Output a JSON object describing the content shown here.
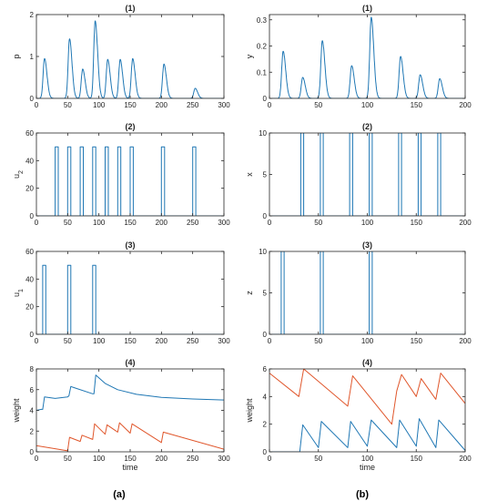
{
  "panel_labels": [
    "(a)",
    "(b)"
  ],
  "colors": {
    "blue": "#1f77b4",
    "orange": "#e0562b",
    "axis": "#262626"
  },
  "chart_data": [
    {
      "id": "a1",
      "type": "line",
      "title": "(1)",
      "xlabel": "",
      "ylabel": "p",
      "xlim": [
        0,
        300
      ],
      "ylim": [
        0,
        2
      ],
      "xticks": [
        0,
        50,
        100,
        150,
        200,
        250,
        300
      ],
      "yticks": [
        0,
        1,
        2
      ],
      "series": [
        {
          "color": "blue",
          "kind": "pulses",
          "peaks": [
            [
              13,
              0.95
            ],
            [
              53,
              1.42
            ],
            [
              74,
              0.7
            ],
            [
              94,
              1.85
            ],
            [
              114,
              0.93
            ],
            [
              134,
              0.93
            ],
            [
              154,
              0.95
            ],
            [
              204,
              0.82
            ],
            [
              254,
              0.24
            ]
          ]
        }
      ]
    },
    {
      "id": "b1",
      "type": "line",
      "title": "(1)",
      "xlabel": "",
      "ylabel": "y",
      "xlim": [
        0,
        200
      ],
      "ylim": [
        0,
        0.32
      ],
      "xticks": [
        0,
        50,
        100,
        150,
        200
      ],
      "yticks": [
        0,
        0.1,
        0.2,
        0.3
      ],
      "series": [
        {
          "color": "blue",
          "kind": "pulses",
          "peaks": [
            [
              14,
              0.18
            ],
            [
              34,
              0.08
            ],
            [
              54,
              0.22
            ],
            [
              84,
              0.125
            ],
            [
              104,
              0.31
            ],
            [
              134,
              0.16
            ],
            [
              154,
              0.09
            ],
            [
              174,
              0.075
            ]
          ]
        }
      ]
    },
    {
      "id": "a2",
      "type": "line",
      "title": "(2)",
      "xlabel": "",
      "ylabel": "u",
      "ylabel_sub": "2",
      "xlim": [
        0,
        300
      ],
      "ylim": [
        0,
        60
      ],
      "xticks": [
        0,
        50,
        100,
        150,
        200,
        250,
        300
      ],
      "yticks": [
        0,
        20,
        40,
        60
      ],
      "series": [
        {
          "color": "blue",
          "kind": "rect",
          "level": 50,
          "intervals": [
            [
              30,
              35
            ],
            [
              50,
              55
            ],
            [
              70,
              75
            ],
            [
              90,
              95
            ],
            [
              110,
              115
            ],
            [
              130,
              135
            ],
            [
              150,
              155
            ],
            [
              200,
              205
            ],
            [
              250,
              255
            ]
          ]
        }
      ]
    },
    {
      "id": "b2",
      "type": "line",
      "title": "(2)",
      "xlabel": "",
      "ylabel": "x",
      "xlim": [
        0,
        200
      ],
      "ylim": [
        0,
        10
      ],
      "xticks": [
        0,
        50,
        100,
        150,
        200
      ],
      "yticks": [
        0,
        5,
        10
      ],
      "series": [
        {
          "color": "blue",
          "kind": "rect",
          "level": 10,
          "intervals": [
            [
              32,
              35
            ],
            [
              52,
              55
            ],
            [
              82,
              85
            ],
            [
              102,
              105
            ],
            [
              132,
              135
            ],
            [
              152,
              155
            ],
            [
              172,
              175
            ]
          ]
        }
      ]
    },
    {
      "id": "a3",
      "type": "line",
      "title": "(3)",
      "xlabel": "",
      "ylabel": "u",
      "ylabel_sub": "1",
      "xlim": [
        0,
        300
      ],
      "ylim": [
        0,
        60
      ],
      "xticks": [
        0,
        50,
        100,
        150,
        200,
        250,
        300
      ],
      "yticks": [
        0,
        20,
        40,
        60
      ],
      "series": [
        {
          "color": "blue",
          "kind": "rect",
          "level": 50,
          "intervals": [
            [
              10,
              15
            ],
            [
              50,
              55
            ],
            [
              90,
              95
            ]
          ]
        }
      ]
    },
    {
      "id": "b3",
      "type": "line",
      "title": "(3)",
      "xlabel": "",
      "ylabel": "z",
      "xlim": [
        0,
        200
      ],
      "ylim": [
        0,
        10
      ],
      "xticks": [
        0,
        50,
        100,
        150,
        200
      ],
      "yticks": [
        0,
        5,
        10
      ],
      "series": [
        {
          "color": "blue",
          "kind": "rect",
          "level": 10,
          "intervals": [
            [
              12,
              15
            ],
            [
              52,
              55
            ],
            [
              102,
              105
            ]
          ]
        }
      ]
    },
    {
      "id": "a4",
      "type": "line",
      "title": "(4)",
      "xlabel": "time",
      "ylabel": "weight",
      "xlim": [
        0,
        300
      ],
      "ylim": [
        0,
        8
      ],
      "xticks": [
        0,
        50,
        100,
        150,
        200,
        250,
        300
      ],
      "yticks": [
        0,
        2,
        4,
        6,
        8
      ],
      "series": [
        {
          "color": "blue",
          "kind": "points",
          "points": [
            [
              0,
              4
            ],
            [
              8,
              4.1
            ],
            [
              10,
              4.1
            ],
            [
              13,
              5.3
            ],
            [
              30,
              5.15
            ],
            [
              50,
              5.3
            ],
            [
              52,
              5.4
            ],
            [
              55,
              6.3
            ],
            [
              60,
              6.2
            ],
            [
              90,
              5.6
            ],
            [
              92,
              5.6
            ],
            [
              95,
              7.4
            ],
            [
              110,
              6.6
            ],
            [
              130,
              6.0
            ],
            [
              160,
              5.55
            ],
            [
              200,
              5.25
            ],
            [
              250,
              5.1
            ],
            [
              300,
              5.0
            ]
          ]
        },
        {
          "color": "orange",
          "kind": "points",
          "points": [
            [
              0,
              0.6
            ],
            [
              50,
              0.1
            ],
            [
              53,
              1.4
            ],
            [
              70,
              1.0
            ],
            [
              73,
              1.6
            ],
            [
              90,
              1.2
            ],
            [
              93,
              2.7
            ],
            [
              110,
              1.7
            ],
            [
              113,
              2.6
            ],
            [
              130,
              1.9
            ],
            [
              133,
              2.8
            ],
            [
              150,
              1.8
            ],
            [
              153,
              2.7
            ],
            [
              200,
              0.9
            ],
            [
              203,
              1.9
            ],
            [
              300,
              0.25
            ]
          ]
        }
      ]
    },
    {
      "id": "b4",
      "type": "line",
      "title": "(4)",
      "xlabel": "time",
      "ylabel": "weight",
      "xlim": [
        0,
        200
      ],
      "ylim": [
        0,
        6
      ],
      "xticks": [
        0,
        50,
        100,
        150,
        200
      ],
      "yticks": [
        0,
        2,
        4,
        6
      ],
      "series": [
        {
          "color": "orange",
          "kind": "points",
          "points": [
            [
              0,
              5.7
            ],
            [
              30,
              4.0
            ],
            [
              35,
              6.0
            ],
            [
              80,
              3.3
            ],
            [
              85,
              5.5
            ],
            [
              125,
              2.0
            ],
            [
              130,
              4.4
            ],
            [
              135,
              5.6
            ],
            [
              150,
              4.0
            ],
            [
              155,
              5.3
            ],
            [
              170,
              3.8
            ],
            [
              175,
              5.7
            ],
            [
              200,
              3.5
            ]
          ]
        },
        {
          "color": "blue",
          "kind": "points",
          "points": [
            [
              0,
              0
            ],
            [
              31,
              0
            ],
            [
              34,
              1.95
            ],
            [
              50,
              0.3
            ],
            [
              53,
              2.2
            ],
            [
              80,
              0.3
            ],
            [
              83,
              2.2
            ],
            [
              100,
              0.4
            ],
            [
              104,
              2.3
            ],
            [
              130,
              0.3
            ],
            [
              133,
              2.3
            ],
            [
              150,
              0.4
            ],
            [
              153,
              2.4
            ],
            [
              170,
              0.3
            ],
            [
              173,
              2.3
            ],
            [
              200,
              0.1
            ]
          ]
        }
      ]
    }
  ]
}
